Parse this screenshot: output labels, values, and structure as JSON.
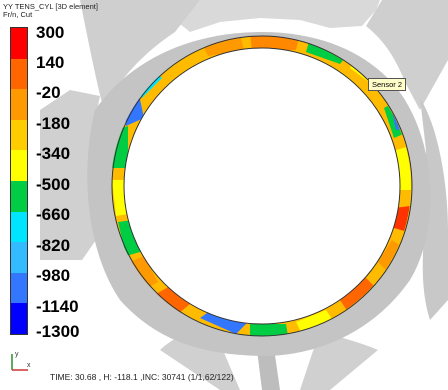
{
  "title": "YY TENS_CYL [3D element]",
  "subtitle": "Fr/n, Cut",
  "legend": {
    "labels": [
      "300",
      "140",
      "-20",
      "-180",
      "-340",
      "-500",
      "-660",
      "-820",
      "-980",
      "-1140",
      "-1300"
    ],
    "colors": [
      "#ff0000",
      "#ff6600",
      "#ff9900",
      "#ffcc00",
      "#ffff00",
      "#00cc44",
      "#00e5ff",
      "#33bbff",
      "#3377ff",
      "#1f3dff",
      "#0000ff"
    ]
  },
  "sensor_label": "Sensor 2",
  "axis": {
    "y": "y",
    "x": "x"
  },
  "status": {
    "time": "TIME:  30.68",
    "h": ", H: -118.1",
    "inc": ",INC: 30741 (1/1,62/122)"
  }
}
